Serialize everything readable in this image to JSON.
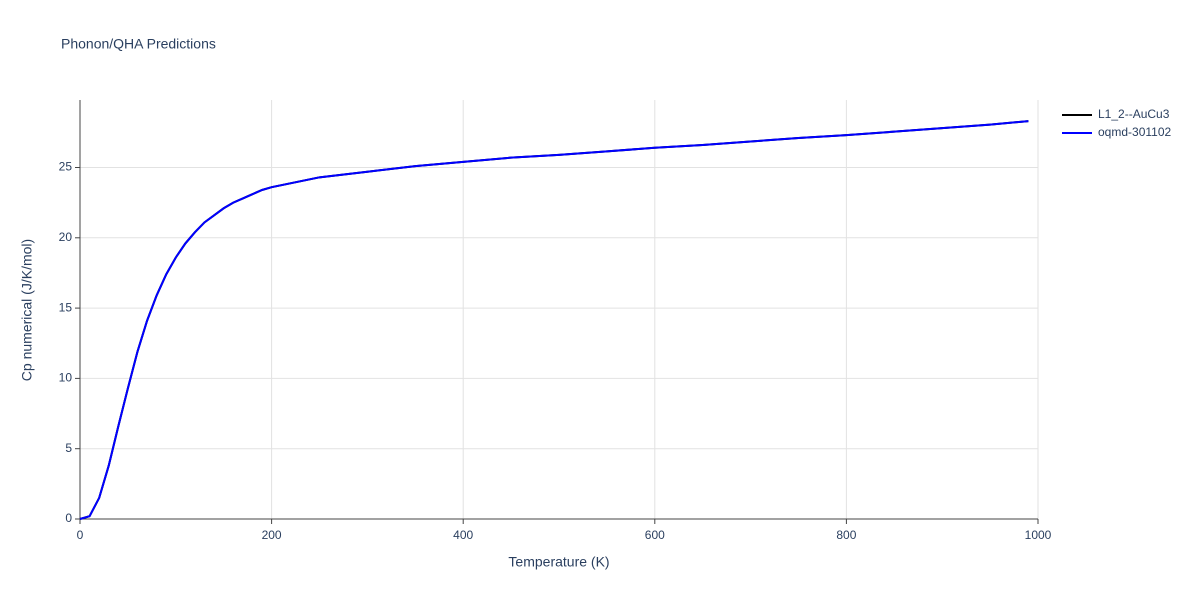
{
  "chart_data": {
    "type": "line",
    "title": "Phonon/QHA Predictions",
    "x_label": "Temperature (K)",
    "y_label": "Cp numerical (J/K/mol)",
    "x": [
      0,
      10,
      20,
      30,
      40,
      50,
      60,
      70,
      80,
      90,
      100,
      110,
      120,
      130,
      140,
      150,
      160,
      170,
      180,
      190,
      200,
      250,
      300,
      350,
      400,
      450,
      500,
      550,
      600,
      650,
      700,
      750,
      800,
      850,
      900,
      950,
      990
    ],
    "series": [
      {
        "name": "L1_2--AuCu3",
        "color": "#000000",
        "values": [
          0,
          0.2,
          1.5,
          3.8,
          6.6,
          9.3,
          11.9,
          14.1,
          15.9,
          17.4,
          18.6,
          19.6,
          20.4,
          21.1,
          21.6,
          22.1,
          22.5,
          22.8,
          23.1,
          23.4,
          23.6,
          24.3,
          24.7,
          25.1,
          25.4,
          25.7,
          25.9,
          26.15,
          26.4,
          26.6,
          26.85,
          27.1,
          27.3,
          27.55,
          27.8,
          28.05,
          28.3
        ]
      },
      {
        "name": "oqmd-301102",
        "color": "#0000ff",
        "values": [
          0,
          0.2,
          1.5,
          3.8,
          6.6,
          9.3,
          11.9,
          14.1,
          15.9,
          17.4,
          18.6,
          19.6,
          20.4,
          21.1,
          21.6,
          22.1,
          22.5,
          22.8,
          23.1,
          23.4,
          23.6,
          24.3,
          24.7,
          25.1,
          25.4,
          25.7,
          25.9,
          26.15,
          26.4,
          26.6,
          26.85,
          27.1,
          27.3,
          27.55,
          27.8,
          28.05,
          28.3
        ]
      }
    ],
    "xlim": [
      0,
      1000
    ],
    "xticks": [
      0,
      200,
      400,
      600,
      800,
      1000
    ],
    "ylim": [
      0,
      29.8
    ],
    "yticks": [
      0,
      5,
      10,
      15,
      20,
      25
    ],
    "grid": true,
    "legend": "right"
  }
}
